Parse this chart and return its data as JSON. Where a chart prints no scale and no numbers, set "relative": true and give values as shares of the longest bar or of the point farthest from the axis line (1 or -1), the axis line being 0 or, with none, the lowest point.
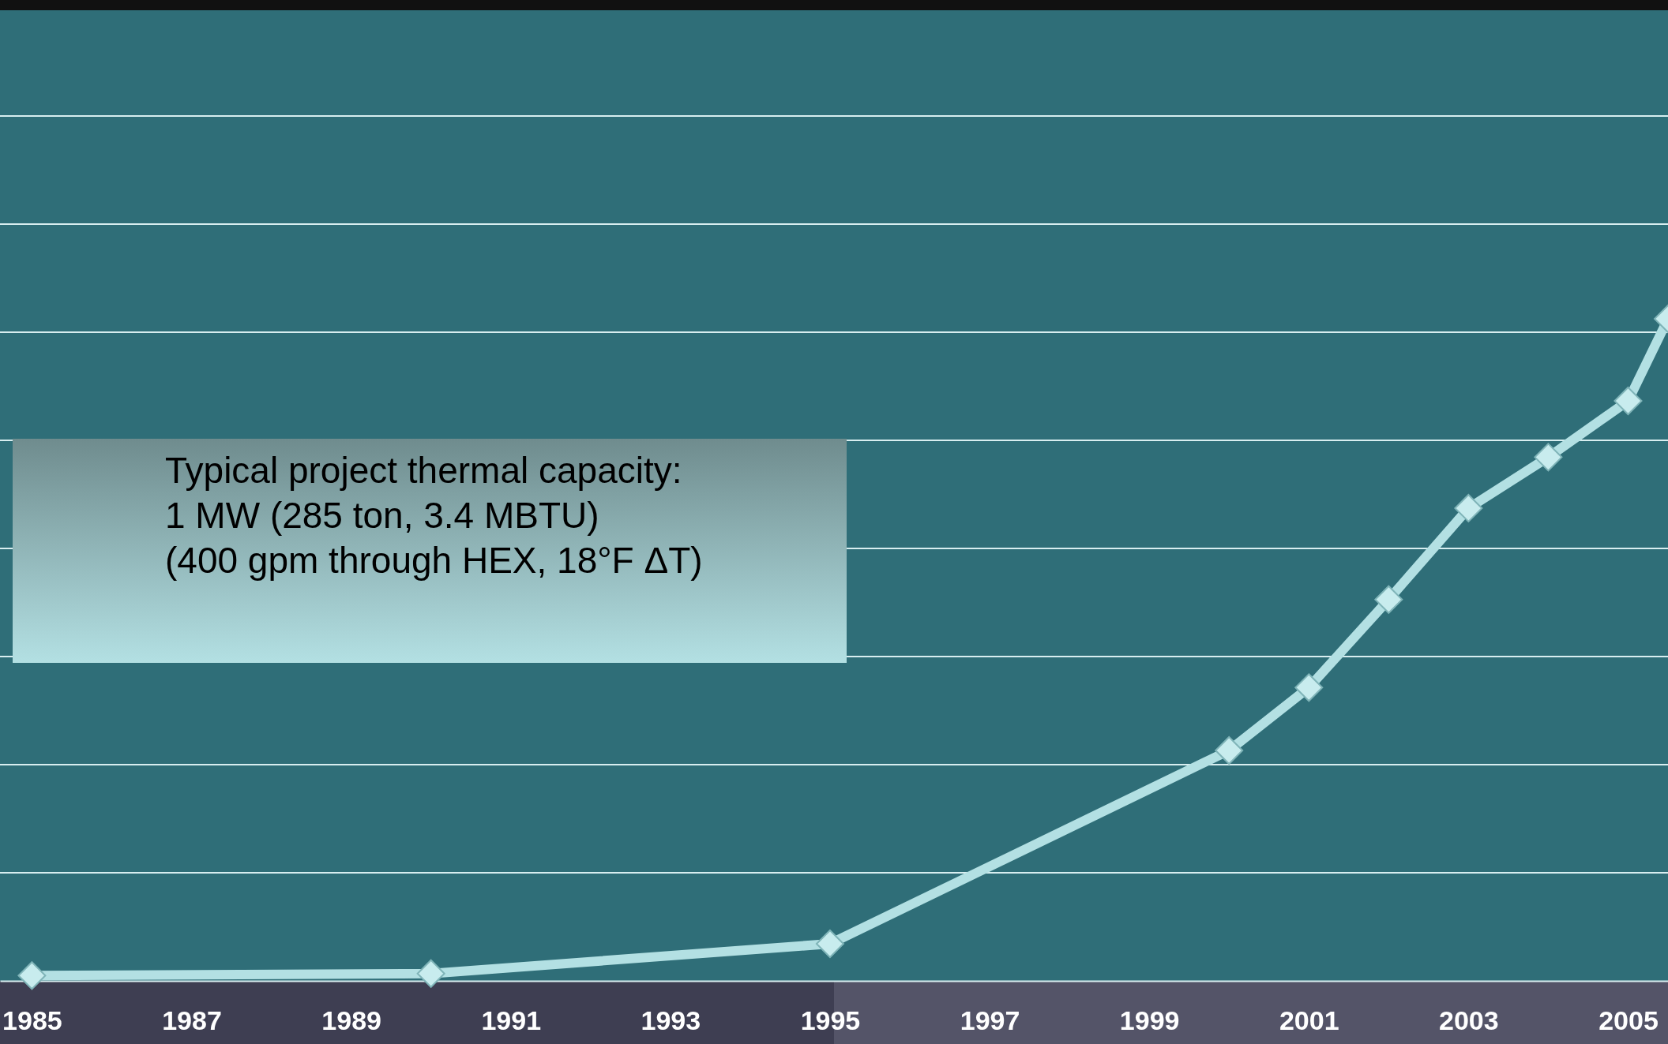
{
  "chart_data": {
    "type": "line",
    "relative": true,
    "x": [
      1985,
      1990,
      1995,
      2000,
      2001,
      2002,
      2003,
      2004,
      2005,
      2005.5
    ],
    "series": [
      {
        "color": "#b3e0e3",
        "values": [
          0.008,
          0.011,
          0.056,
          0.348,
          0.443,
          0.576,
          0.714,
          0.791,
          0.876,
          1
        ]
      }
    ],
    "xlim": [
      1984.6,
      2005.5
    ],
    "xticks": [
      1985,
      1987,
      1989,
      1991,
      1993,
      1995,
      1997,
      1999,
      2001,
      2003,
      2005
    ],
    "grid": "y",
    "marker": "diamond",
    "line_style": "solid",
    "annotations": [
      "Typical project  thermal capacity:\n1 MW (285 ton, 3.4 MBTU)\n(400 gpm through HEX, 18°F ΔT)"
    ]
  }
}
